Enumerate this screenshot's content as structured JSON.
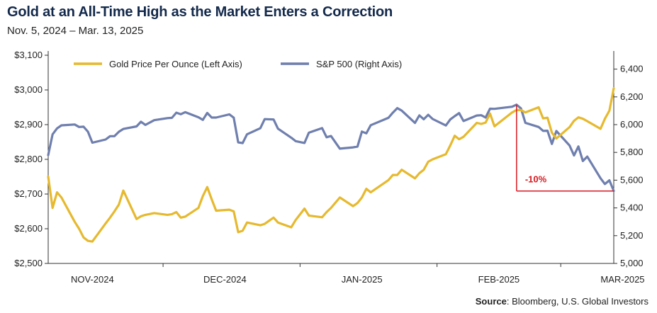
{
  "title": "Gold at an All-Time High as the Market Enters a Correction",
  "subtitle": "Nov. 5, 2024 – Mar. 13, 2025",
  "source_label": "Source",
  "source_text": ": Bloomberg, U.S. Global Investors",
  "colors": {
    "gold": "#e6b92e",
    "spx": "#6f7fae",
    "annotation": "#d71920"
  },
  "chart_data": {
    "type": "line",
    "title": "Gold at an All-Time High as the Market Enters a Correction",
    "subtitle": "Nov. 5, 2024 – Mar. 13, 2025",
    "x_tick_labels": [
      "NOV-2024",
      "DEC-2024",
      "JAN-2025",
      "FEB-2025",
      "MAR-2025"
    ],
    "x_tick_dates": [
      "2024-11-15",
      "2024-12-15",
      "2025-01-15",
      "2025-02-15",
      "2025-03-15"
    ],
    "x_range": [
      "2024-11-05",
      "2025-03-13"
    ],
    "left_axis": {
      "ylim": [
        2500,
        3100
      ],
      "ticks": [
        2500,
        2600,
        2700,
        2800,
        2900,
        3000,
        3100
      ],
      "tick_labels": [
        "$2,500",
        "$2,600",
        "$2,700",
        "$2,800",
        "$2,900",
        "$3,000",
        "$3,100"
      ]
    },
    "right_axis": {
      "ylim": [
        5000,
        6500
      ],
      "ticks": [
        5000,
        5200,
        5400,
        5600,
        5800,
        6000,
        6200,
        6400
      ],
      "tick_labels": [
        "5,000",
        "5,200",
        "5,400",
        "5,600",
        "5,800",
        "6,000",
        "6,200",
        "6,400"
      ]
    },
    "grid": false,
    "legend_position": "top-left",
    "series": [
      {
        "name": "Gold Price Per Ounce (Left Axis)",
        "axis": "left",
        "x": [
          "2024-11-05",
          "2024-11-06",
          "2024-11-07",
          "2024-11-08",
          "2024-11-11",
          "2024-11-12",
          "2024-11-13",
          "2024-11-14",
          "2024-11-15",
          "2024-11-18",
          "2024-11-19",
          "2024-11-20",
          "2024-11-21",
          "2024-11-22",
          "2024-11-25",
          "2024-11-26",
          "2024-11-27",
          "2024-11-29",
          "2024-12-02",
          "2024-12-03",
          "2024-12-04",
          "2024-12-05",
          "2024-12-06",
          "2024-12-09",
          "2024-12-10",
          "2024-12-11",
          "2024-12-12",
          "2024-12-13",
          "2024-12-16",
          "2024-12-17",
          "2024-12-18",
          "2024-12-19",
          "2024-12-20",
          "2024-12-23",
          "2024-12-24",
          "2024-12-26",
          "2024-12-27",
          "2024-12-30",
          "2024-12-31",
          "2025-01-02",
          "2025-01-03",
          "2025-01-06",
          "2025-01-07",
          "2025-01-08",
          "2025-01-10",
          "2025-01-13",
          "2025-01-14",
          "2025-01-15",
          "2025-01-16",
          "2025-01-17",
          "2025-01-21",
          "2025-01-22",
          "2025-01-23",
          "2025-01-24",
          "2025-01-27",
          "2025-01-28",
          "2025-01-29",
          "2025-01-30",
          "2025-01-31",
          "2025-02-03",
          "2025-02-04",
          "2025-02-05",
          "2025-02-06",
          "2025-02-07",
          "2025-02-10",
          "2025-02-11",
          "2025-02-12",
          "2025-02-13",
          "2025-02-14",
          "2025-02-18",
          "2025-02-19",
          "2025-02-20",
          "2025-02-21",
          "2025-02-24",
          "2025-02-25",
          "2025-02-26",
          "2025-02-27",
          "2025-02-28",
          "2025-03-03",
          "2025-03-04",
          "2025-03-05",
          "2025-03-06",
          "2025-03-07",
          "2025-03-10",
          "2025-03-11",
          "2025-03-12",
          "2025-03-13"
        ],
        "values": [
          2750,
          2660,
          2705,
          2690,
          2620,
          2600,
          2575,
          2565,
          2563,
          2615,
          2632,
          2650,
          2670,
          2710,
          2628,
          2636,
          2640,
          2645,
          2640,
          2642,
          2648,
          2632,
          2635,
          2660,
          2694,
          2720,
          2685,
          2652,
          2655,
          2650,
          2590,
          2594,
          2618,
          2610,
          2614,
          2632,
          2618,
          2604,
          2625,
          2658,
          2638,
          2633,
          2648,
          2660,
          2690,
          2665,
          2674,
          2690,
          2715,
          2705,
          2740,
          2755,
          2755,
          2770,
          2745,
          2760,
          2770,
          2793,
          2800,
          2815,
          2840,
          2868,
          2858,
          2865,
          2905,
          2902,
          2906,
          2932,
          2895,
          2935,
          2942,
          2942,
          2935,
          2950,
          2918,
          2920,
          2877,
          2860,
          2893,
          2911,
          2921,
          2917,
          2910,
          2888,
          2917,
          2940,
          3005
        ]
      },
      {
        "name": "S&P 500 (Right Axis)",
        "axis": "right",
        "x": [
          "2024-11-05",
          "2024-11-06",
          "2024-11-07",
          "2024-11-08",
          "2024-11-11",
          "2024-11-12",
          "2024-11-13",
          "2024-11-14",
          "2024-11-15",
          "2024-11-18",
          "2024-11-19",
          "2024-11-20",
          "2024-11-21",
          "2024-11-22",
          "2024-11-25",
          "2024-11-26",
          "2024-11-27",
          "2024-11-29",
          "2024-12-02",
          "2024-12-03",
          "2024-12-04",
          "2024-12-05",
          "2024-12-06",
          "2024-12-09",
          "2024-12-10",
          "2024-12-11",
          "2024-12-12",
          "2024-12-13",
          "2024-12-16",
          "2024-12-17",
          "2024-12-18",
          "2024-12-19",
          "2024-12-20",
          "2024-12-23",
          "2024-12-24",
          "2024-12-26",
          "2024-12-27",
          "2024-12-30",
          "2024-12-31",
          "2025-01-02",
          "2025-01-03",
          "2025-01-06",
          "2025-01-07",
          "2025-01-08",
          "2025-01-10",
          "2025-01-13",
          "2025-01-14",
          "2025-01-15",
          "2025-01-16",
          "2025-01-17",
          "2025-01-21",
          "2025-01-22",
          "2025-01-23",
          "2025-01-24",
          "2025-01-27",
          "2025-01-28",
          "2025-01-29",
          "2025-01-30",
          "2025-01-31",
          "2025-02-03",
          "2025-02-04",
          "2025-02-05",
          "2025-02-06",
          "2025-02-07",
          "2025-02-10",
          "2025-02-11",
          "2025-02-12",
          "2025-02-13",
          "2025-02-14",
          "2025-02-18",
          "2025-02-19",
          "2025-02-20",
          "2025-02-21",
          "2025-02-24",
          "2025-02-25",
          "2025-02-26",
          "2025-02-27",
          "2025-02-28",
          "2025-03-03",
          "2025-03-04",
          "2025-03-05",
          "2025-03-06",
          "2025-03-07",
          "2025-03-10",
          "2025-03-11",
          "2025-03-12",
          "2025-03-13"
        ],
        "values": [
          5780,
          5930,
          5973,
          5995,
          6001,
          5983,
          5985,
          5949,
          5870,
          5893,
          5917,
          5917,
          5949,
          5969,
          5987,
          6021,
          5998,
          6032,
          6047,
          6049,
          6086,
          6075,
          6090,
          6053,
          6034,
          6084,
          6051,
          6051,
          6074,
          6050,
          5872,
          5867,
          5930,
          5974,
          6040,
          6037,
          5971,
          5906,
          5881,
          5868,
          5942,
          5975,
          5909,
          5918,
          5827,
          5836,
          5842,
          5950,
          5937,
          5996,
          6049,
          6086,
          6119,
          6101,
          6012,
          6067,
          6039,
          6071,
          6041,
          5994,
          6037,
          6061,
          6083,
          6026,
          6066,
          6068,
          6051,
          6115,
          6114,
          6129,
          6144,
          6117,
          6013,
          5983,
          5955,
          5956,
          5861,
          5954,
          5849,
          5778,
          5843,
          5738,
          5770,
          5614,
          5572,
          5599,
          5522
        ]
      }
    ],
    "annotations": [
      {
        "text": "-10%",
        "from": {
          "x": "2025-02-19",
          "y": 6144
        },
        "to": {
          "x": "2025-03-13",
          "y": 5522
        }
      }
    ]
  }
}
